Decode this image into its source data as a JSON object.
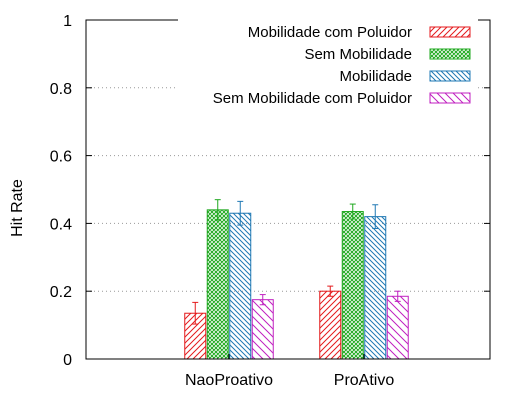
{
  "chart_data": {
    "type": "bar",
    "ylabel": "Hit Rate",
    "xlabel": "",
    "title": "",
    "ylim": [
      0,
      1
    ],
    "yticks": [
      0,
      0.2,
      0.4,
      0.6,
      0.8,
      1
    ],
    "ytick_labels": [
      "0",
      "0.2",
      "0.4",
      "0.6",
      "0.8",
      "1"
    ],
    "grid": "horizontal dotted",
    "legend_position": "top-right",
    "categories": [
      "NaoProativo",
      "ProAtivo"
    ],
    "series": [
      {
        "name": "Mobilidade com Poluidor",
        "color": "#e41a1c",
        "pattern": "hatch-forward",
        "values": [
          0.135,
          0.2
        ],
        "errors": [
          0.032,
          0.015
        ]
      },
      {
        "name": "Sem Mobilidade",
        "color": "#1fa81f",
        "pattern": "crosshatch",
        "values": [
          0.44,
          0.435
        ],
        "errors": [
          0.03,
          0.022
        ]
      },
      {
        "name": "Mobilidade",
        "color": "#1f78b4",
        "pattern": "hatch-back",
        "values": [
          0.43,
          0.42
        ],
        "errors": [
          0.035,
          0.035
        ]
      },
      {
        "name": "Sem Mobilidade com Poluidor",
        "color": "#c020c0",
        "pattern": "hatch-back-wide",
        "values": [
          0.175,
          0.185
        ],
        "errors": [
          0.015,
          0.015
        ]
      }
    ]
  }
}
